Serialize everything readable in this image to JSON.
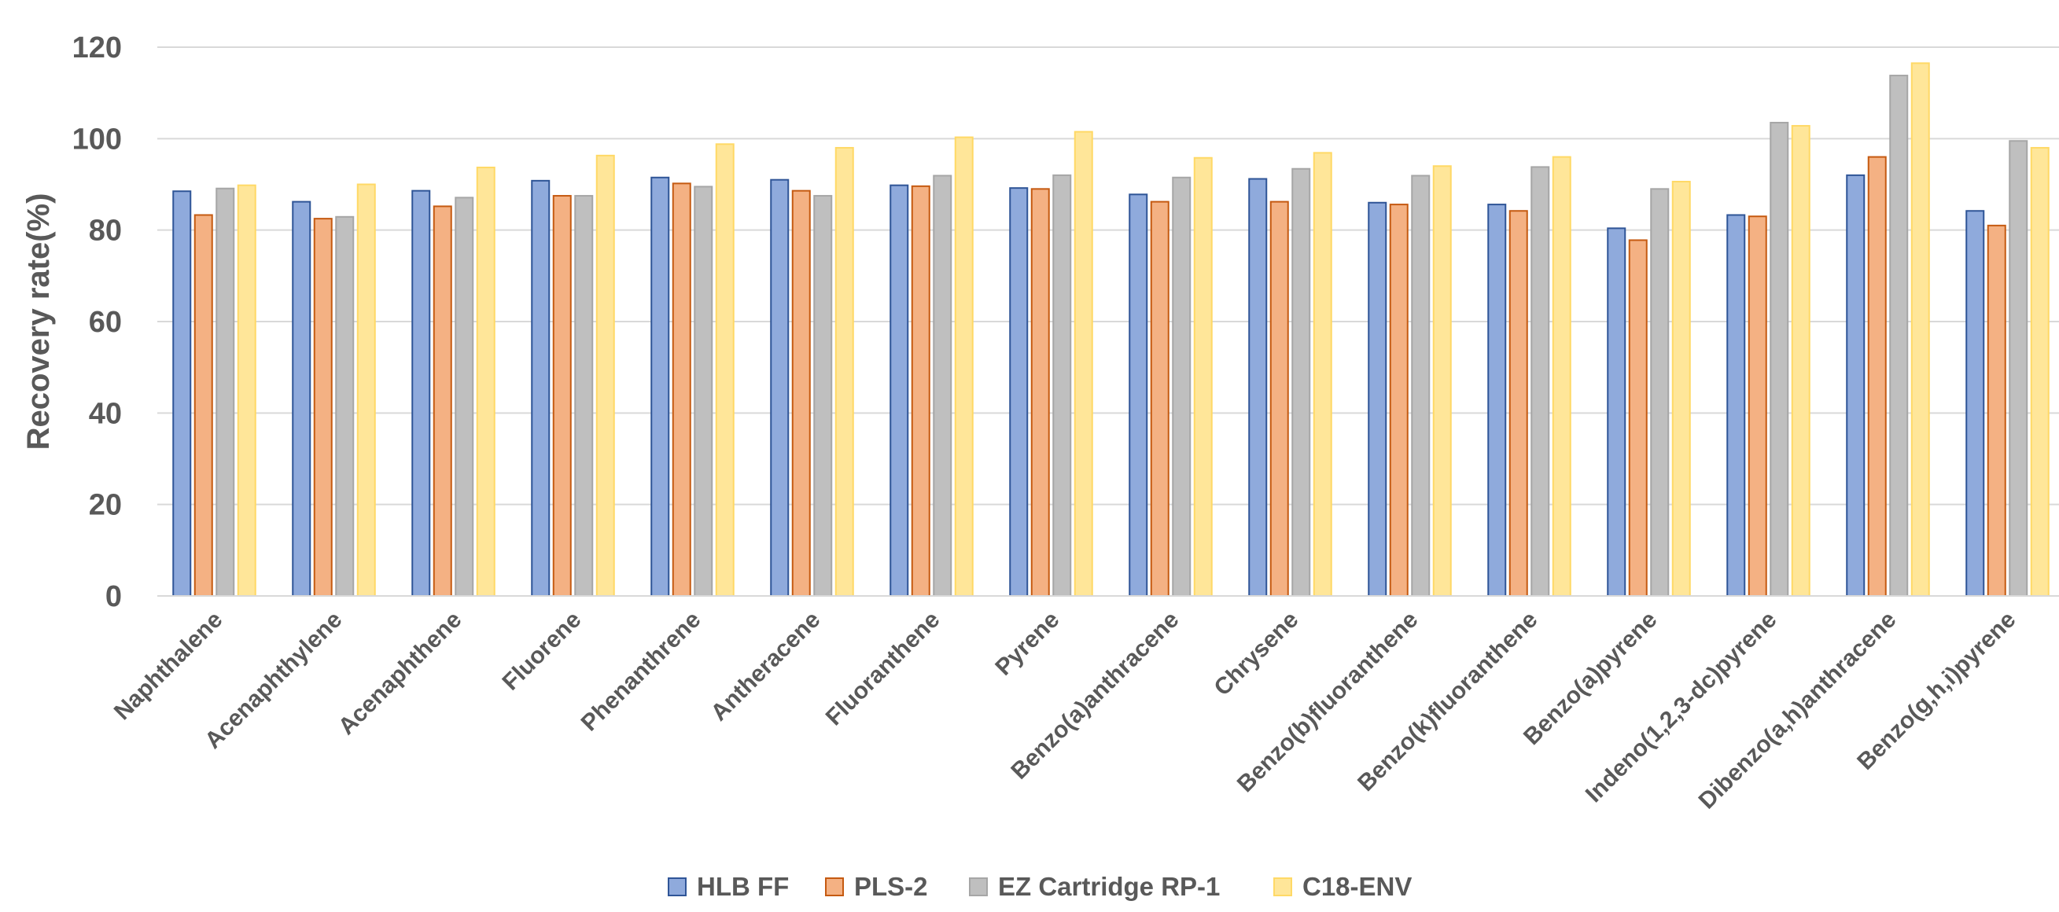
{
  "chart_data": {
    "type": "bar",
    "title": "",
    "xlabel": "",
    "ylabel": "Recovery rate(%)",
    "ylim": [
      0,
      120
    ],
    "yticks": [
      0,
      20,
      40,
      60,
      80,
      100,
      120
    ],
    "grid": true,
    "legend_position": "bottom",
    "categories": [
      "Naphthalene",
      "Acenaphthylene",
      "Acenaphthene",
      "Fluorene",
      "Phenanthrene",
      "Antheracene",
      "Fluoranthene",
      "Pyrene",
      "Benzo(a)anthracene",
      "Chrysene",
      "Benzo(b)fluoranthene",
      "Benzo(k)fluoranthene",
      "Benzo(a)pyrene",
      "Indeno(1,2,3-dc)pyrene",
      "Dibenzo(a,h)anthracene",
      "Benzo(g,h,i)pyrene"
    ],
    "series": [
      {
        "name": "HLB FF",
        "color": "#8FAADC",
        "edge": "#2F5597",
        "values": [
          88.5,
          86.2,
          88.6,
          90.8,
          91.5,
          91.0,
          89.8,
          89.2,
          87.8,
          91.2,
          86.0,
          85.6,
          80.4,
          83.3,
          92.0,
          84.2
        ]
      },
      {
        "name": "PLS-2",
        "color": "#F4B183",
        "edge": "#C55A11",
        "values": [
          83.3,
          82.5,
          85.2,
          87.5,
          90.2,
          88.6,
          89.6,
          89.0,
          86.2,
          86.2,
          85.6,
          84.2,
          77.8,
          83.0,
          96.0,
          81.0
        ]
      },
      {
        "name": "EZ Cartridge RP-1",
        "color": "#BFBFBF",
        "edge": "#A6A6A6",
        "values": [
          89.1,
          82.9,
          87.1,
          87.5,
          89.5,
          87.5,
          91.9,
          92.0,
          91.5,
          93.4,
          91.9,
          93.8,
          89.0,
          103.5,
          113.8,
          99.5
        ]
      },
      {
        "name": "C18-ENV",
        "color": "#FFE699",
        "edge": "#FFD966",
        "values": [
          89.8,
          90.0,
          93.7,
          96.3,
          98.8,
          98.0,
          100.3,
          101.5,
          95.8,
          96.9,
          94.0,
          96.0,
          90.6,
          102.8,
          116.5,
          98.0
        ]
      }
    ]
  }
}
